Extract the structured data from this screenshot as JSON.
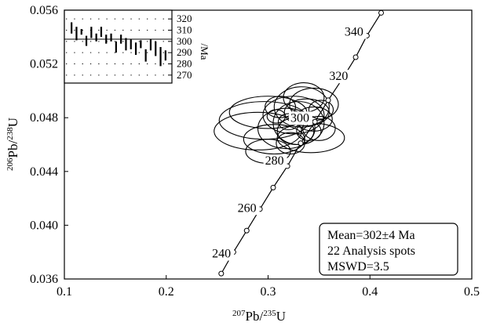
{
  "chart_data": [
    {
      "type": "scatter",
      "subtype": "concordia",
      "xlabel": {
        "sup1": "207",
        "base1": "Pb/",
        "sup2": "235",
        "base2": "U"
      },
      "ylabel": {
        "sup1": "206",
        "base1": "Pb/",
        "sup2": "238",
        "base2": "U"
      },
      "xlim": [
        0.1,
        0.5
      ],
      "ylim": [
        0.036,
        0.056
      ],
      "x_ticks": [
        "0.1",
        "0.2",
        "0.3",
        "0.4",
        "0.5"
      ],
      "y_ticks": [
        "0.036",
        "0.040",
        "0.044",
        "0.048",
        "0.052",
        "0.056"
      ],
      "grid": false,
      "concordia_points": [
        {
          "x": 0.254,
          "y": 0.0364
        },
        {
          "x": 0.266,
          "y": 0.038
        },
        {
          "x": 0.279,
          "y": 0.0396
        },
        {
          "x": 0.292,
          "y": 0.0412
        },
        {
          "x": 0.305,
          "y": 0.0428
        },
        {
          "x": 0.319,
          "y": 0.0444
        },
        {
          "x": 0.332,
          "y": 0.0461
        },
        {
          "x": 0.346,
          "y": 0.0477
        },
        {
          "x": 0.359,
          "y": 0.0493
        },
        {
          "x": 0.373,
          "y": 0.0509
        },
        {
          "x": 0.386,
          "y": 0.0525
        },
        {
          "x": 0.397,
          "y": 0.0541
        },
        {
          "x": 0.411,
          "y": 0.0558
        }
      ],
      "age_labels": [
        {
          "text": "240",
          "x": 0.245,
          "y": 0.0376
        },
        {
          "text": "260",
          "x": 0.27,
          "y": 0.041
        },
        {
          "text": "280",
          "x": 0.297,
          "y": 0.0445
        },
        {
          "text": "300",
          "x": 0.322,
          "y": 0.0477
        },
        {
          "text": "320",
          "x": 0.36,
          "y": 0.0508
        },
        {
          "text": "340",
          "x": 0.375,
          "y": 0.0541
        }
      ],
      "ellipses": [
        {
          "cx": 0.296,
          "cy": 0.0478,
          "rx": 0.044,
          "ry": 0.0014
        },
        {
          "cx": 0.29,
          "cy": 0.047,
          "rx": 0.043,
          "ry": 0.0014
        },
        {
          "cx": 0.3,
          "cy": 0.0484,
          "rx": 0.038,
          "ry": 0.0012
        },
        {
          "cx": 0.306,
          "cy": 0.0464,
          "rx": 0.03,
          "ry": 0.0011
        },
        {
          "cx": 0.3,
          "cy": 0.0455,
          "rx": 0.022,
          "ry": 0.0009
        },
        {
          "cx": 0.342,
          "cy": 0.0465,
          "rx": 0.033,
          "ry": 0.0011
        },
        {
          "cx": 0.318,
          "cy": 0.0472,
          "rx": 0.028,
          "ry": 0.0015
        },
        {
          "cx": 0.33,
          "cy": 0.0476,
          "rx": 0.025,
          "ry": 0.0016
        },
        {
          "cx": 0.325,
          "cy": 0.0482,
          "rx": 0.03,
          "ry": 0.0014
        },
        {
          "cx": 0.333,
          "cy": 0.0488,
          "rx": 0.027,
          "ry": 0.0015
        },
        {
          "cx": 0.345,
          "cy": 0.049,
          "rx": 0.024,
          "ry": 0.0012
        },
        {
          "cx": 0.335,
          "cy": 0.0495,
          "rx": 0.02,
          "ry": 0.0011
        },
        {
          "cx": 0.327,
          "cy": 0.047,
          "rx": 0.018,
          "ry": 0.001
        },
        {
          "cx": 0.345,
          "cy": 0.0479,
          "rx": 0.018,
          "ry": 0.0009
        },
        {
          "cx": 0.338,
          "cy": 0.0484,
          "rx": 0.022,
          "ry": 0.001
        },
        {
          "cx": 0.312,
          "cy": 0.0488,
          "rx": 0.015,
          "ry": 0.0008
        },
        {
          "cx": 0.322,
          "cy": 0.0461,
          "rx": 0.014,
          "ry": 0.0008
        },
        {
          "cx": 0.35,
          "cy": 0.0472,
          "rx": 0.016,
          "ry": 0.0009
        },
        {
          "cx": 0.32,
          "cy": 0.0477,
          "rx": 0.01,
          "ry": 0.0006
        },
        {
          "cx": 0.34,
          "cy": 0.047,
          "rx": 0.012,
          "ry": 0.0007
        },
        {
          "cx": 0.308,
          "cy": 0.0481,
          "rx": 0.009,
          "ry": 0.0005
        },
        {
          "cx": 0.352,
          "cy": 0.0486,
          "rx": 0.012,
          "ry": 0.0007
        }
      ],
      "inset": {
        "ylim": [
          265,
          325
        ],
        "y_ticks": [
          "320",
          "310",
          "300",
          "290",
          "280",
          "270"
        ],
        "unit": "/Ma",
        "mean_line": 302,
        "bars": [
          {
            "low": 307,
            "high": 317
          },
          {
            "low": 301,
            "high": 313
          },
          {
            "low": 306,
            "high": 311
          },
          {
            "low": 296,
            "high": 305
          },
          {
            "low": 303,
            "high": 313
          },
          {
            "low": 300,
            "high": 307
          },
          {
            "low": 304,
            "high": 313
          },
          {
            "low": 298,
            "high": 306
          },
          {
            "low": 300,
            "high": 307
          },
          {
            "low": 290,
            "high": 300
          },
          {
            "low": 298,
            "high": 306
          },
          {
            "low": 292,
            "high": 303
          },
          {
            "low": 293,
            "high": 302
          },
          {
            "low": 288,
            "high": 299
          },
          {
            "low": 294,
            "high": 301
          },
          {
            "low": 282,
            "high": 293
          },
          {
            "low": 292,
            "high": 302
          },
          {
            "low": 287,
            "high": 300
          },
          {
            "low": 278,
            "high": 295
          },
          {
            "low": 283,
            "high": 292
          }
        ]
      },
      "annotation": {
        "line1": "Mean=302±4 Ma",
        "line2": "22 Analysis spots",
        "line3": "MSWD=3.5"
      }
    }
  ]
}
